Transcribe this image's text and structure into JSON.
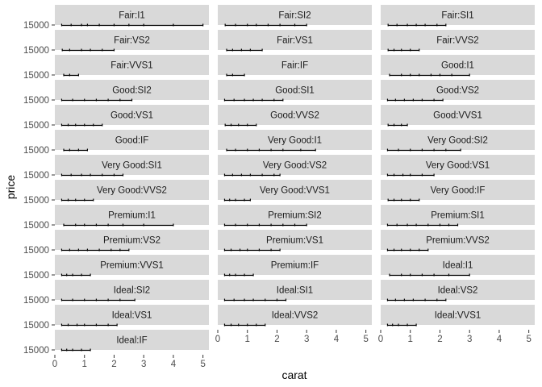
{
  "chart_data": {
    "type": "scatter",
    "title": "",
    "xlabel": "carat",
    "ylabel": "price",
    "x_ticks": [
      0,
      1,
      2,
      3,
      4,
      5
    ],
    "y_tick_label": "15000",
    "xlim": [
      0,
      5.2
    ],
    "grid": false,
    "facet_labels": [
      "Fair:I1",
      "Fair:SI2",
      "Fair:SI1",
      "Fair:VS2",
      "Fair:VS1",
      "Fair:VVS2",
      "Fair:VVS1",
      "Fair:IF",
      "Good:I1",
      "Good:SI2",
      "Good:SI1",
      "Good:VS2",
      "Good:VS1",
      "Good:VVS2",
      "Good:VVS1",
      "Good:IF",
      "Very Good:I1",
      "Very Good:SI2",
      "Very Good:SI1",
      "Very Good:VS2",
      "Very Good:VS1",
      "Very Good:VVS2",
      "Very Good:VVS1",
      "Very Good:IF",
      "Premium:I1",
      "Premium:SI2",
      "Premium:SI1",
      "Premium:VS2",
      "Premium:VS1",
      "Premium:VVS2",
      "Premium:VVS1",
      "Premium:IF",
      "Ideal:I1",
      "Ideal:SI2",
      "Ideal:SI1",
      "Ideal:VS2",
      "Ideal:VS1",
      "Ideal:VVS2",
      "Ideal:VVS1",
      "Ideal:IF"
    ],
    "series": [
      {
        "x": [
          0.23,
          0.55,
          0.9,
          1.1,
          1.5,
          2.0,
          2.5,
          3.0,
          4.0,
          5.0
        ]
      },
      {
        "x": [
          0.25,
          0.6,
          1.0,
          1.3,
          1.7,
          2.1,
          2.6,
          3.0
        ]
      },
      {
        "x": [
          0.25,
          0.55,
          0.9,
          1.2,
          1.5,
          1.9,
          2.2
        ]
      },
      {
        "x": [
          0.25,
          0.5,
          0.9,
          1.2,
          1.6,
          2.0
        ]
      },
      {
        "x": [
          0.3,
          0.5,
          0.8,
          1.1,
          1.5
        ]
      },
      {
        "x": [
          0.25,
          0.45,
          0.7,
          1.0,
          1.3
        ]
      },
      {
        "x": [
          0.3,
          0.5,
          0.8
        ]
      },
      {
        "x": [
          0.3,
          0.5,
          0.9
        ]
      },
      {
        "x": [
          0.3,
          0.7,
          1.0,
          1.3,
          1.7,
          2.0,
          2.4,
          3.0
        ]
      },
      {
        "x": [
          0.23,
          0.6,
          1.0,
          1.4,
          1.8,
          2.2,
          2.6
        ]
      },
      {
        "x": [
          0.23,
          0.55,
          0.9,
          1.2,
          1.5,
          1.9,
          2.2
        ]
      },
      {
        "x": [
          0.23,
          0.5,
          0.8,
          1.1,
          1.4,
          1.8,
          2.1
        ]
      },
      {
        "x": [
          0.23,
          0.45,
          0.7,
          1.0,
          1.3,
          1.6
        ]
      },
      {
        "x": [
          0.25,
          0.45,
          0.7,
          1.0,
          1.3
        ]
      },
      {
        "x": [
          0.25,
          0.45,
          0.7,
          0.9
        ]
      },
      {
        "x": [
          0.3,
          0.5,
          0.8,
          1.1
        ]
      },
      {
        "x": [
          0.3,
          0.6,
          1.0,
          1.4,
          1.8,
          2.2,
          2.8,
          3.3
        ]
      },
      {
        "x": [
          0.23,
          0.6,
          1.0,
          1.4,
          1.8,
          2.2,
          2.7
        ]
      },
      {
        "x": [
          0.23,
          0.55,
          0.9,
          1.2,
          1.6,
          2.0,
          2.3
        ]
      },
      {
        "x": [
          0.23,
          0.5,
          0.8,
          1.1,
          1.5,
          1.9,
          2.1
        ]
      },
      {
        "x": [
          0.23,
          0.45,
          0.75,
          1.0,
          1.4,
          1.8
        ]
      },
      {
        "x": [
          0.23,
          0.45,
          0.7,
          1.0,
          1.3
        ]
      },
      {
        "x": [
          0.23,
          0.4,
          0.6,
          0.9,
          1.1
        ]
      },
      {
        "x": [
          0.25,
          0.45,
          0.7,
          1.0,
          1.3
        ]
      },
      {
        "x": [
          0.3,
          0.7,
          1.0,
          1.4,
          1.8,
          2.3,
          3.0,
          4.0
        ]
      },
      {
        "x": [
          0.23,
          0.6,
          1.0,
          1.4,
          1.8,
          2.2,
          2.6,
          3.0
        ]
      },
      {
        "x": [
          0.23,
          0.55,
          0.9,
          1.2,
          1.6,
          2.0,
          2.3,
          2.6
        ]
      },
      {
        "x": [
          0.23,
          0.5,
          0.8,
          1.1,
          1.5,
          1.9,
          2.2,
          2.5
        ]
      },
      {
        "x": [
          0.23,
          0.45,
          0.75,
          1.0,
          1.4,
          1.8,
          2.1
        ]
      },
      {
        "x": [
          0.23,
          0.45,
          0.7,
          1.0,
          1.3,
          1.6
        ]
      },
      {
        "x": [
          0.23,
          0.4,
          0.6,
          0.9,
          1.2
        ]
      },
      {
        "x": [
          0.23,
          0.4,
          0.6,
          0.9,
          1.2
        ]
      },
      {
        "x": [
          0.3,
          0.7,
          1.0,
          1.4,
          1.8,
          2.3,
          3.0
        ]
      },
      {
        "x": [
          0.23,
          0.6,
          1.0,
          1.4,
          1.8,
          2.2,
          2.7
        ]
      },
      {
        "x": [
          0.23,
          0.55,
          0.9,
          1.2,
          1.6,
          2.0,
          2.3
        ]
      },
      {
        "x": [
          0.23,
          0.5,
          0.8,
          1.1,
          1.5,
          1.9,
          2.2
        ]
      },
      {
        "x": [
          0.23,
          0.45,
          0.75,
          1.0,
          1.4,
          1.8,
          2.1
        ]
      },
      {
        "x": [
          0.23,
          0.45,
          0.7,
          1.0,
          1.3,
          1.6
        ]
      },
      {
        "x": [
          0.23,
          0.4,
          0.6,
          0.9,
          1.2
        ]
      },
      {
        "x": [
          0.23,
          0.4,
          0.6,
          0.9,
          1.2
        ]
      }
    ]
  }
}
